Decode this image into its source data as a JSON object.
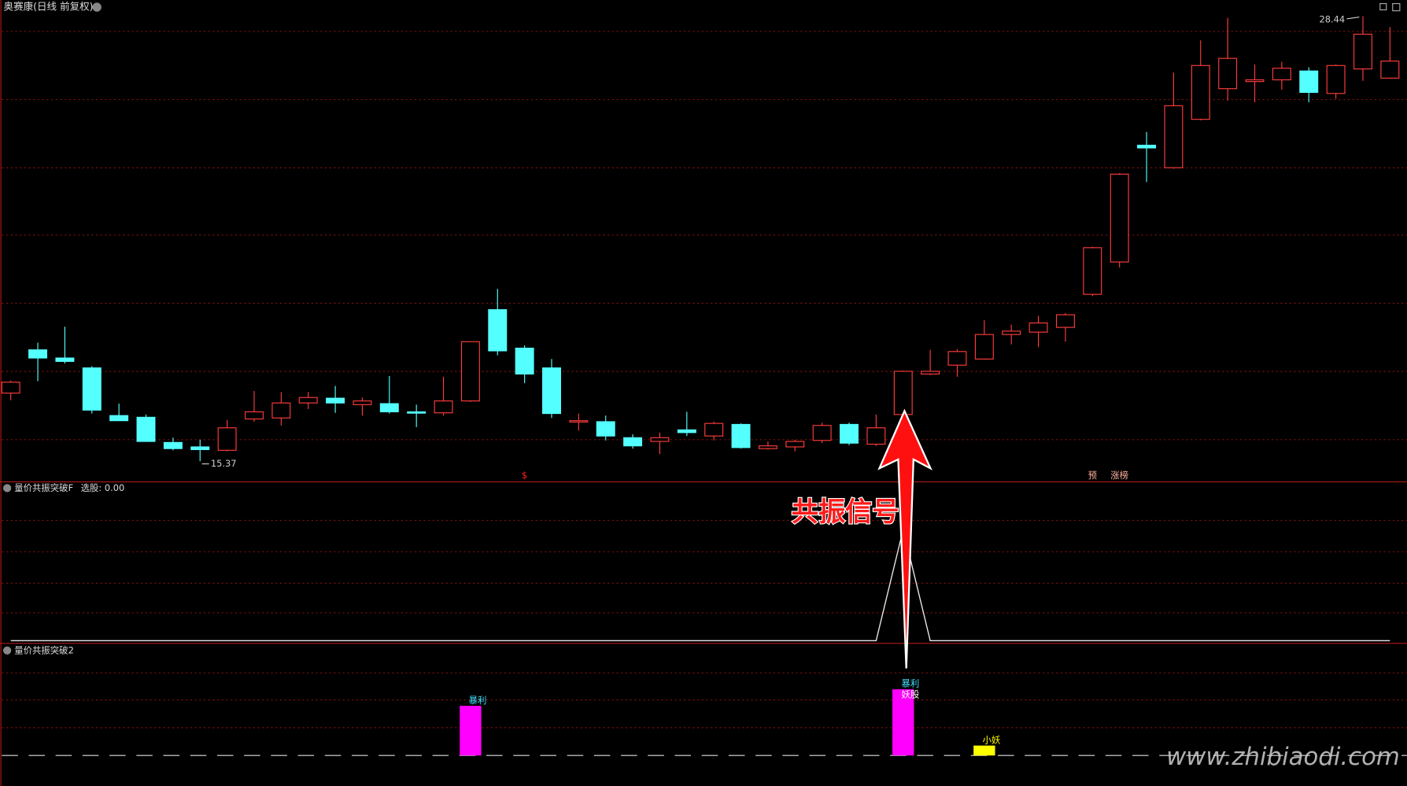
{
  "chart_data": {
    "type": "candlestick",
    "title": "奥赛康(日线 前复权)",
    "up_color": "#ff3c3c",
    "down_color": "#54ffff",
    "open": [
      17.37,
      18.64,
      18.4,
      18.11,
      16.71,
      16.66,
      15.92,
      15.79,
      15.69,
      16.61,
      16.64,
      17.08,
      17.22,
      17.03,
      17.06,
      16.82,
      16.79,
      17.14,
      19.82,
      18.69,
      18.11,
      16.53,
      16.53,
      16.06,
      15.95,
      16.29,
      16.11,
      16.45,
      15.74,
      15.79,
      15.98,
      16.45,
      15.87,
      16.74,
      17.93,
      18.19,
      18.37,
      19.09,
      19.16,
      19.3,
      20.27,
      21.22,
      24.65,
      23.99,
      25.41,
      26.31,
      26.52,
      26.57,
      26.83,
      26.17,
      26.89,
      26.62
    ],
    "close": [
      17.69,
      18.4,
      18.3,
      16.87,
      16.56,
      15.95,
      15.74,
      15.71,
      16.35,
      16.82,
      17.08,
      17.24,
      17.08,
      17.14,
      16.82,
      16.79,
      17.14,
      18.88,
      18.61,
      17.93,
      16.77,
      16.56,
      16.11,
      15.82,
      16.06,
      16.21,
      16.48,
      15.77,
      15.82,
      15.95,
      16.42,
      15.9,
      16.35,
      18.01,
      18.01,
      18.59,
      19.09,
      19.19,
      19.43,
      19.67,
      21.64,
      23.8,
      24.57,
      25.81,
      26.99,
      27.2,
      26.57,
      26.91,
      26.2,
      26.99,
      27.91,
      27.12
    ],
    "high": [
      17.74,
      18.85,
      19.32,
      18.16,
      17.06,
      16.74,
      16.06,
      16.0,
      16.58,
      17.43,
      17.4,
      17.4,
      17.58,
      17.24,
      17.87,
      17.03,
      17.85,
      18.88,
      20.43,
      18.77,
      18.37,
      16.77,
      16.71,
      16.16,
      16.21,
      16.82,
      16.53,
      16.48,
      15.95,
      16.0,
      16.5,
      16.5,
      16.74,
      18.03,
      18.64,
      18.66,
      19.51,
      19.38,
      19.64,
      19.72,
      21.67,
      23.83,
      25.04,
      26.78,
      27.73,
      28.39,
      27.02,
      27.1,
      26.94,
      27.02,
      28.44,
      28.12
    ],
    "low": [
      17.16,
      17.72,
      18.24,
      16.77,
      16.56,
      15.95,
      15.69,
      15.37,
      15.66,
      16.53,
      16.42,
      16.9,
      16.79,
      16.71,
      16.77,
      16.37,
      16.71,
      17.11,
      18.48,
      17.66,
      16.64,
      16.27,
      15.98,
      15.74,
      15.58,
      16.11,
      15.98,
      15.74,
      15.71,
      15.66,
      15.9,
      15.84,
      15.82,
      16.53,
      17.9,
      17.85,
      18.35,
      18.8,
      18.72,
      18.88,
      20.22,
      21.06,
      23.57,
      23.96,
      25.38,
      25.96,
      25.91,
      26.28,
      25.91,
      26.02,
      26.54,
      26.6
    ],
    "markers": [
      {
        "index": 19,
        "text": "$",
        "color": "#ff2020"
      },
      {
        "index": 40,
        "text": "预",
        "color": "#ffb0a0"
      },
      {
        "index": 41,
        "text": "涨榜",
        "color": "#ffb0a0"
      }
    ],
    "indicator1": {
      "title": "量价共振突破F",
      "subtitle": "选股: 0.00",
      "ylim": [
        0,
        1
      ],
      "values": [
        0,
        0,
        0,
        0,
        0,
        0,
        0,
        0,
        0,
        0,
        0,
        0,
        0,
        0,
        0,
        0,
        0,
        0,
        0,
        0,
        0,
        0,
        0,
        0,
        0,
        0,
        0,
        0,
        0,
        0,
        0,
        0,
        0,
        1,
        0,
        0,
        0,
        0,
        0,
        0,
        0,
        0,
        0,
        0,
        0,
        0,
        0,
        0,
        0,
        0,
        0,
        0
      ]
    },
    "indicator2": {
      "title": "量价共振突破2",
      "ylim": [
        0,
        4.5
      ],
      "bars": [
        {
          "index": 17,
          "value": 3,
          "color": "#ff00ff",
          "label": "暴利",
          "label_color": "#40e0ff"
        },
        {
          "index": 33,
          "value": 4,
          "color": "#ff00ff",
          "label": "暴利",
          "label_color": "#40e0ff",
          "label2": "妖股"
        },
        {
          "index": 36,
          "value": 0.6,
          "color": "#ffff00",
          "label": "小妖",
          "label_color": "#ffff00"
        }
      ]
    },
    "annotation": "共振信号",
    "watermark": "www.zhibiaodi.com"
  }
}
